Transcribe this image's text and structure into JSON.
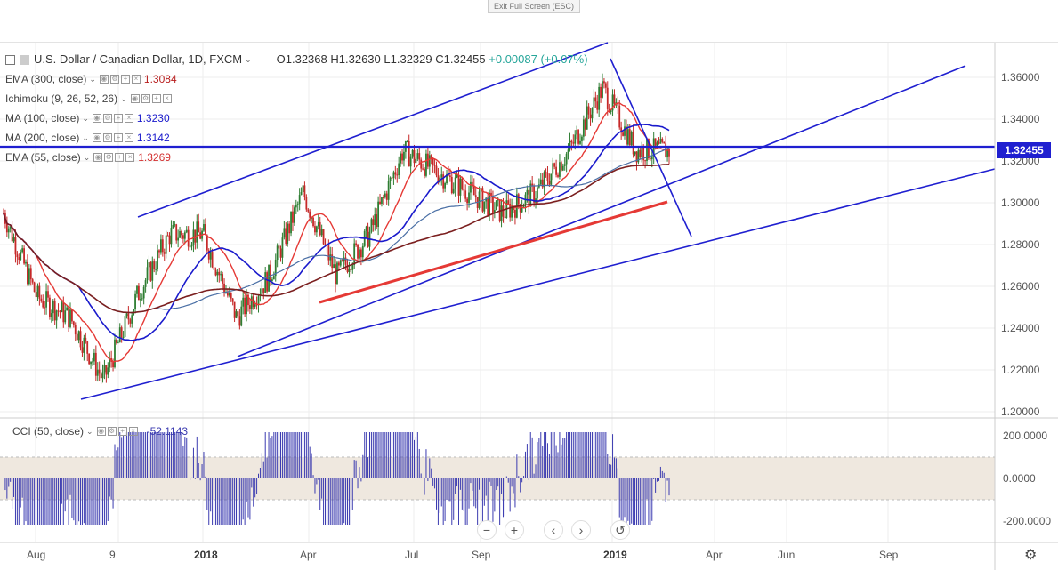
{
  "topbar": {
    "exit_label": "Exit Full Screen (ESC)"
  },
  "symbol": {
    "title": "U.S. Dollar / Canadian Dollar, 1D, FXCM",
    "open": "O1.32368",
    "high": "H1.32630",
    "low": "L1.32329",
    "close": "C1.32455",
    "change": "+0.00087 (+0.07%)"
  },
  "indicators": [
    {
      "label": "EMA (300, close)",
      "value": "1.3084",
      "color": "#b71c1c"
    },
    {
      "label": "Ichimoku (9, 26, 52, 26)",
      "value": "",
      "color": "#444444"
    },
    {
      "label": "MA (100, close)",
      "value": "1.3230",
      "color": "#1a1acc"
    },
    {
      "label": "MA (200, close)",
      "value": "1.3142",
      "color": "#1a1acc"
    },
    {
      "label": "EMA (55, close)",
      "value": "1.3269",
      "color": "#d32f2f"
    }
  ],
  "price_axis": [
    "1.36000",
    "1.34000",
    "1.32000",
    "1.30000",
    "1.28000",
    "1.26000",
    "1.24000",
    "1.22000",
    "1.20000"
  ],
  "last_price": "1.32455",
  "cci": {
    "label": "CCI (50, close)",
    "value": "-52.1143",
    "axis": [
      "200.0000",
      "0.0000",
      "-200.0000"
    ]
  },
  "time_axis": [
    {
      "label": "Aug",
      "bold": false
    },
    {
      "label": "9",
      "bold": false
    },
    {
      "label": "2018",
      "bold": true
    },
    {
      "label": "Apr",
      "bold": false
    },
    {
      "label": "Jul",
      "bold": false
    },
    {
      "label": "Sep",
      "bold": false
    },
    {
      "label": "2019",
      "bold": true
    },
    {
      "label": "Apr",
      "bold": false
    },
    {
      "label": "Jun",
      "bold": false
    },
    {
      "label": "Sep",
      "bold": false
    }
  ],
  "nav": {
    "zoom_out": "−",
    "zoom_in": "+",
    "left": "‹",
    "right": "›",
    "reset": "↺"
  },
  "colors": {
    "trendline": "#1f1fd0",
    "support": "#e53935",
    "up": "#2e7d32",
    "down": "#c62828",
    "cci": "#3b3bb0",
    "band": "#efe8df"
  },
  "chart_data": {
    "type": "candlestick",
    "symbol": "USDCAD",
    "timeframe": "1D",
    "ylim": [
      1.2,
      1.37
    ],
    "last_close": 1.32455,
    "approx_close_path": [
      {
        "t": "2017-07",
        "v": 1.295
      },
      {
        "t": "2017-08",
        "v": 1.255
      },
      {
        "t": "2017-08-end",
        "v": 1.245
      },
      {
        "t": "2017-09",
        "v": 1.215
      },
      {
        "t": "2017-10",
        "v": 1.255
      },
      {
        "t": "2017-11",
        "v": 1.285
      },
      {
        "t": "2017-12",
        "v": 1.285
      },
      {
        "t": "2018-01",
        "v": 1.245
      },
      {
        "t": "2018-02",
        "v": 1.265
      },
      {
        "t": "2018-03",
        "v": 1.305
      },
      {
        "t": "2018-04",
        "v": 1.265
      },
      {
        "t": "2018-05",
        "v": 1.285
      },
      {
        "t": "2018-06",
        "v": 1.325
      },
      {
        "t": "2018-07",
        "v": 1.315
      },
      {
        "t": "2018-08",
        "v": 1.305
      },
      {
        "t": "2018-09",
        "v": 1.295
      },
      {
        "t": "2018-10",
        "v": 1.305
      },
      {
        "t": "2018-11",
        "v": 1.325
      },
      {
        "t": "2018-12",
        "v": 1.355
      },
      {
        "t": "2019-01",
        "v": 1.325
      },
      {
        "t": "2019-02",
        "v": 1.325
      }
    ]
  }
}
